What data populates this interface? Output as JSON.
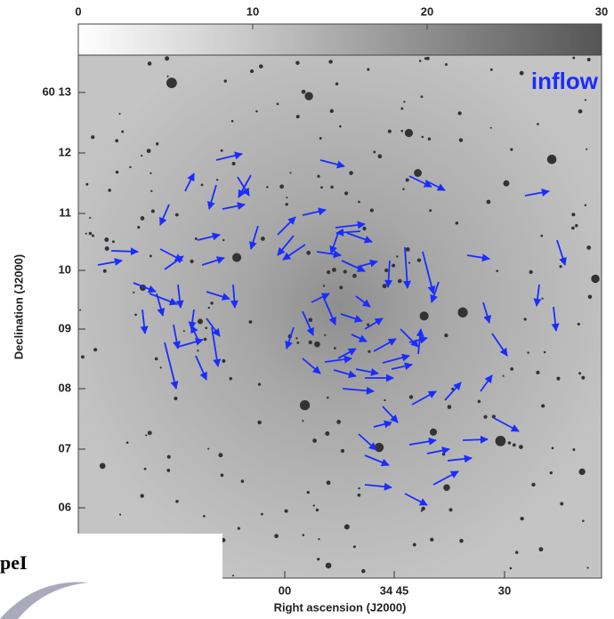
{
  "colorbar": {
    "range": [
      0,
      30
    ],
    "ticks": [
      0,
      10,
      20,
      30
    ]
  },
  "annotation": "inflow",
  "y_axis": {
    "label": "Declination (J2000)",
    "ticks": [
      "60 13",
      "12",
      "11",
      "10",
      "09",
      "08",
      "07",
      "06"
    ]
  },
  "x_axis": {
    "label": "Right ascension (J2000)",
    "ticks": [
      "00",
      "34 45",
      "30"
    ]
  },
  "inset": {
    "text": "peI"
  }
}
